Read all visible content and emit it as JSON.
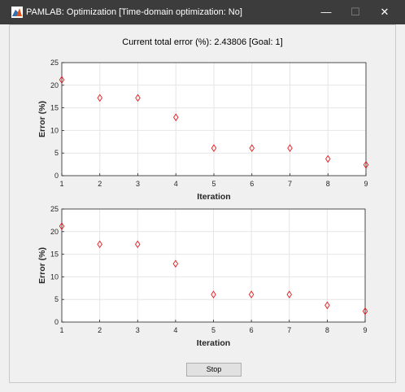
{
  "window": {
    "title": "PAMLAB: Optimization [Time-domain optimization: No]",
    "minimize_glyph": "—",
    "maximize_glyph": "☐",
    "close_glyph": "✕",
    "icon": "matlab-membrane-icon"
  },
  "status": {
    "text": "Current total error (%): 2.43806 [Goal: 1]"
  },
  "controls": {
    "stop_label": "Stop"
  },
  "colors": {
    "titlebar": "#3c3c3c",
    "marker": "#e41a1c",
    "grid": "#e6e6e6",
    "axes": "#262626"
  },
  "chart_data": [
    {
      "type": "scatter",
      "title": "",
      "xlabel": "Iteration",
      "ylabel": "Error (%)",
      "x": [
        1,
        2,
        3,
        4,
        5,
        6,
        7,
        8,
        9
      ],
      "y": [
        21.2,
        17.2,
        17.2,
        12.9,
        6.1,
        6.1,
        6.1,
        3.7,
        2.4
      ],
      "xlim": [
        1,
        9
      ],
      "ylim": [
        0,
        25
      ],
      "xticks": [
        "1",
        "2",
        "3",
        "4",
        "5",
        "6",
        "7",
        "8",
        "9"
      ],
      "yticks": [
        "0",
        "5",
        "10",
        "15",
        "20",
        "25"
      ],
      "marker": "diamond",
      "grid": true
    },
    {
      "type": "scatter",
      "title": "",
      "xlabel": "Iteration",
      "ylabel": "Error (%)",
      "x": [
        1,
        2,
        3,
        4,
        5,
        6,
        7,
        8,
        9
      ],
      "y": [
        21.2,
        17.2,
        17.2,
        12.9,
        6.1,
        6.1,
        6.1,
        3.7,
        2.4
      ],
      "xlim": [
        1,
        9
      ],
      "ylim": [
        0,
        25
      ],
      "xticks": [
        "1",
        "2",
        "3",
        "4",
        "5",
        "6",
        "7",
        "8",
        "9"
      ],
      "yticks": [
        "0",
        "5",
        "10",
        "15",
        "20",
        "25"
      ],
      "marker": "diamond",
      "grid": true
    }
  ]
}
